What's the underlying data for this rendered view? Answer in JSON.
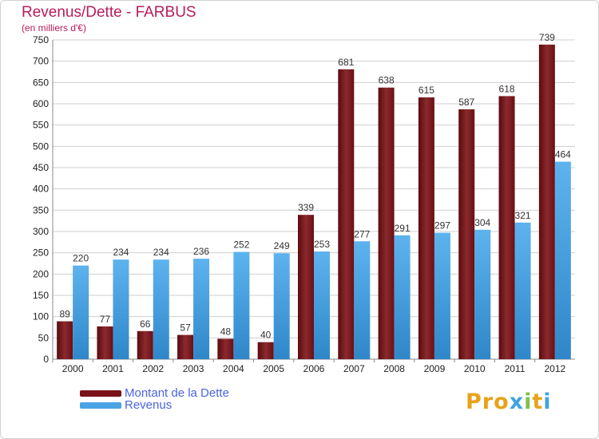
{
  "header": {
    "title": "Revenus/Dette - FARBUS",
    "subtitle": "(en milliers d'€)"
  },
  "logo": {
    "text": "Proxiti",
    "letter_colors": [
      "#e8a21a",
      "#e8a21a",
      "#e8a21a",
      "#3fa5de",
      "#7fc14a",
      "#e8a21a",
      "#3fa5de"
    ]
  },
  "legend": {
    "items": [
      {
        "label": "Montant de la Dette",
        "color": "#7a1218"
      },
      {
        "label": "Revenus",
        "color": "#4aa3e4"
      }
    ]
  },
  "colors": {
    "dette": "#7a1218",
    "revenus": "#4aa3e4",
    "grid": "#cfcfcf",
    "tick_text": "#222222"
  },
  "chart_data": {
    "type": "bar",
    "title": "Revenus/Dette - FARBUS",
    "subtitle": "(en milliers d'€)",
    "categories": [
      "2000",
      "2001",
      "2002",
      "2003",
      "2004",
      "2005",
      "2006",
      "2007",
      "2008",
      "2009",
      "2010",
      "2011",
      "2012"
    ],
    "series": [
      {
        "name": "Montant de la Dette",
        "values": [
          89,
          77,
          66,
          57,
          48,
          40,
          339,
          681,
          638,
          615,
          587,
          618,
          739
        ]
      },
      {
        "name": "Revenus",
        "values": [
          220,
          234,
          234,
          236,
          252,
          249,
          253,
          277,
          291,
          297,
          304,
          321,
          464
        ]
      }
    ],
    "ylim": [
      0,
      750
    ],
    "yticks": [
      0,
      50,
      100,
      150,
      200,
      250,
      300,
      350,
      400,
      450,
      500,
      550,
      600,
      650,
      700,
      750
    ],
    "grid": true,
    "legend_position": "bottom-left"
  }
}
